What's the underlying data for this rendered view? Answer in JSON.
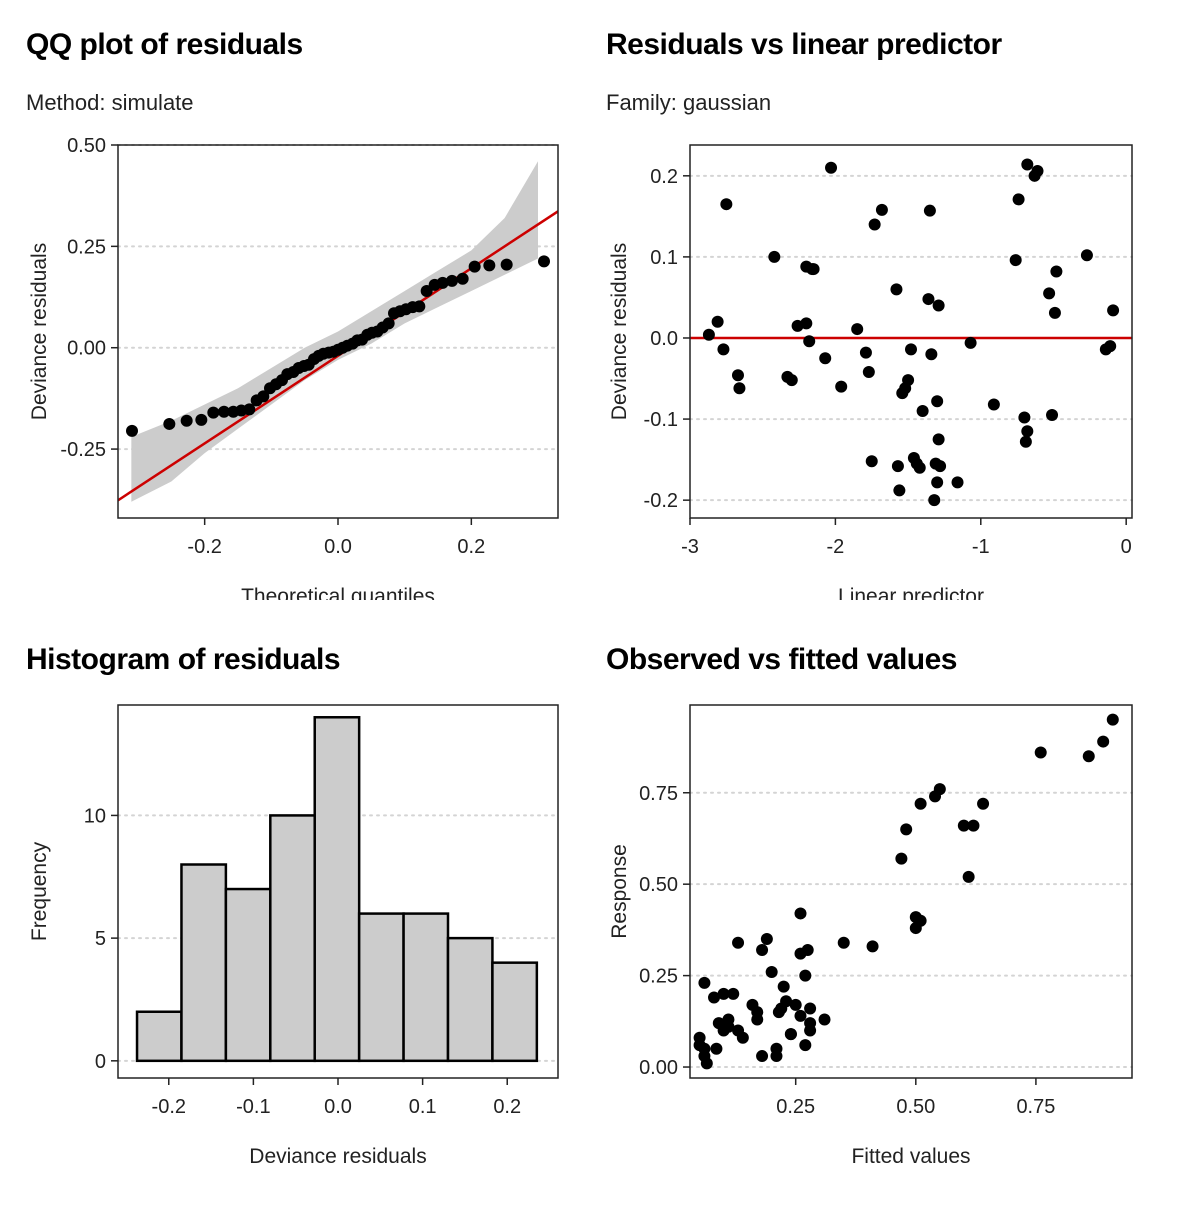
{
  "chart_data": [
    {
      "id": "qq",
      "type": "scatter",
      "title": "QQ plot of residuals",
      "subtitle": "Method: simulate",
      "xlabel": "Theoretical quantiles",
      "ylabel": "Deviance residuals",
      "xlim": [
        -0.33,
        0.33
      ],
      "ylim": [
        -0.42,
        0.5
      ],
      "xticks": [
        -0.2,
        0.0,
        0.2
      ],
      "xtick_labels": [
        "-0.2",
        "0.0",
        "0.2"
      ],
      "yticks": [
        -0.25,
        0.0,
        0.25,
        0.5
      ],
      "ytick_labels": [
        "-0.25",
        "0.00",
        "0.25",
        "0.50"
      ],
      "grid": "horizontal-dotted",
      "colors": {
        "points": "#000000",
        "line": "#cc0000",
        "band": "#cccccc"
      },
      "reference_line": {
        "intercept": -0.02,
        "slope": 1.08
      },
      "band": {
        "x": [
          -0.31,
          -0.25,
          -0.2,
          -0.15,
          -0.1,
          -0.05,
          0.0,
          0.05,
          0.1,
          0.15,
          0.2,
          0.25,
          0.3
        ],
        "lower": [
          -0.38,
          -0.33,
          -0.26,
          -0.2,
          -0.14,
          -0.08,
          -0.03,
          0.01,
          0.06,
          0.1,
          0.14,
          0.18,
          0.22
        ],
        "upper": [
          -0.22,
          -0.18,
          -0.14,
          -0.1,
          -0.05,
          0.0,
          0.04,
          0.09,
          0.14,
          0.19,
          0.24,
          0.32,
          0.46
        ]
      },
      "points": {
        "x": [
          -0.309,
          -0.253,
          -0.227,
          -0.205,
          -0.187,
          -0.171,
          -0.157,
          -0.145,
          -0.133,
          -0.122,
          -0.112,
          -0.102,
          -0.093,
          -0.084,
          -0.076,
          -0.067,
          -0.059,
          -0.051,
          -0.044,
          -0.036,
          -0.029,
          -0.022,
          -0.014,
          -0.007,
          0.0,
          0.007,
          0.014,
          0.022,
          0.029,
          0.036,
          0.044,
          0.051,
          0.059,
          0.067,
          0.076,
          0.084,
          0.093,
          0.102,
          0.112,
          0.122,
          0.133,
          0.145,
          0.157,
          0.171,
          0.187,
          0.205,
          0.227,
          0.253,
          0.309
        ],
        "y": [
          -0.205,
          -0.188,
          -0.18,
          -0.178,
          -0.16,
          -0.158,
          -0.158,
          -0.155,
          -0.152,
          -0.13,
          -0.12,
          -0.1,
          -0.09,
          -0.08,
          -0.065,
          -0.06,
          -0.05,
          -0.045,
          -0.042,
          -0.028,
          -0.02,
          -0.015,
          -0.012,
          -0.01,
          -0.005,
          0.0,
          0.005,
          0.01,
          0.018,
          0.02,
          0.032,
          0.037,
          0.04,
          0.05,
          0.06,
          0.085,
          0.09,
          0.095,
          0.1,
          0.102,
          0.14,
          0.155,
          0.16,
          0.165,
          0.17,
          0.2,
          0.203,
          0.205,
          0.213
        ]
      }
    },
    {
      "id": "resid-linpred",
      "type": "scatter",
      "title": "Residuals vs linear predictor",
      "subtitle": "Family: gaussian",
      "xlabel": "Linear predictor",
      "ylabel": "Deviance residuals",
      "xlim": [
        -3.0,
        0.04
      ],
      "ylim": [
        -0.222,
        0.238
      ],
      "xticks": [
        -3,
        -2,
        -1,
        0
      ],
      "xtick_labels": [
        "-3",
        "-2",
        "-1",
        "0"
      ],
      "yticks": [
        -0.2,
        -0.1,
        0.0,
        0.1,
        0.2
      ],
      "ytick_labels": [
        "-0.2",
        "-0.1",
        "0.0",
        "0.1",
        "0.2"
      ],
      "grid": "horizontal-dotted",
      "colors": {
        "points": "#000000",
        "line": "#cc0000"
      },
      "reference_line_y": 0.0,
      "points": {
        "x": [
          -2.75,
          -2.87,
          -2.81,
          -2.77,
          -2.67,
          -2.66,
          -2.42,
          -2.33,
          -2.3,
          -2.26,
          -2.2,
          -2.2,
          -2.18,
          -2.16,
          -2.15,
          -2.07,
          -2.03,
          -1.96,
          -1.85,
          -1.79,
          -1.77,
          -1.75,
          -1.73,
          -1.68,
          -1.58,
          -1.57,
          -1.56,
          -1.54,
          -1.52,
          -1.5,
          -1.48,
          -1.46,
          -1.44,
          -1.42,
          -1.4,
          -1.36,
          -1.35,
          -1.34,
          -1.32,
          -1.31,
          -1.3,
          -1.3,
          -1.29,
          -1.29,
          -1.28,
          -1.16,
          -1.07,
          -0.91,
          -0.76,
          -0.74,
          -0.69,
          -0.7,
          -0.68,
          -0.68,
          -0.63,
          -0.61,
          -0.53,
          -0.51,
          -0.49,
          -0.48,
          -0.27,
          -0.14,
          -0.11,
          -0.09
        ],
        "y": [
          0.165,
          0.004,
          0.02,
          -0.014,
          -0.046,
          -0.062,
          0.1,
          -0.048,
          -0.052,
          0.015,
          0.088,
          0.018,
          -0.004,
          0.085,
          0.085,
          -0.025,
          0.21,
          -0.06,
          0.011,
          -0.018,
          -0.042,
          -0.152,
          0.14,
          0.158,
          0.06,
          -0.158,
          -0.188,
          -0.068,
          -0.062,
          -0.052,
          -0.014,
          -0.148,
          -0.155,
          -0.16,
          -0.09,
          0.048,
          0.157,
          -0.02,
          -0.2,
          -0.155,
          -0.078,
          -0.178,
          0.04,
          -0.125,
          -0.158,
          -0.178,
          -0.006,
          -0.082,
          0.096,
          0.171,
          -0.128,
          -0.098,
          -0.115,
          0.214,
          0.2,
          0.206,
          0.055,
          -0.095,
          0.031,
          0.082,
          0.102,
          -0.014,
          -0.01,
          0.034
        ]
      }
    },
    {
      "id": "hist",
      "type": "bar",
      "title": "Histogram of residuals",
      "xlabel": "Deviance residuals",
      "ylabel": "Frequency",
      "xlim": [
        -0.26,
        0.26
      ],
      "ylim": [
        -0.7,
        14.5
      ],
      "xticks": [
        -0.2,
        -0.1,
        0.0,
        0.1,
        0.2
      ],
      "xtick_labels": [
        "-0.2",
        "-0.1",
        "0.0",
        "0.1",
        "0.2"
      ],
      "yticks": [
        0,
        5,
        10
      ],
      "ytick_labels": [
        "0",
        "5",
        "10"
      ],
      "grid": "horizontal-dotted",
      "colors": {
        "fill": "#cccccc",
        "stroke": "#000000"
      },
      "bin_edges": [
        -0.2375,
        -0.185,
        -0.1325,
        -0.08,
        -0.0275,
        0.025,
        0.0775,
        0.13,
        0.1825,
        0.235
      ],
      "counts": [
        2,
        8,
        7,
        10,
        14,
        6,
        6,
        5,
        4
      ]
    },
    {
      "id": "obs-fitted",
      "type": "scatter",
      "title": "Observed vs fitted values",
      "xlabel": "Fitted values",
      "ylabel": "Response",
      "xlim": [
        0.03,
        0.95
      ],
      "ylim": [
        -0.03,
        0.99
      ],
      "xticks": [
        0.25,
        0.5,
        0.75
      ],
      "xtick_labels": [
        "0.25",
        "0.50",
        "0.75"
      ],
      "yticks": [
        0.0,
        0.25,
        0.5,
        0.75
      ],
      "ytick_labels": [
        "0.00",
        "0.25",
        "0.50",
        "0.75"
      ],
      "grid": "horizontal-dotted",
      "colors": {
        "points": "#000000"
      },
      "points": {
        "x": [
          0.05,
          0.05,
          0.06,
          0.06,
          0.06,
          0.065,
          0.08,
          0.085,
          0.09,
          0.1,
          0.1,
          0.11,
          0.11,
          0.12,
          0.13,
          0.13,
          0.14,
          0.16,
          0.17,
          0.17,
          0.18,
          0.18,
          0.19,
          0.2,
          0.21,
          0.21,
          0.215,
          0.22,
          0.225,
          0.23,
          0.24,
          0.24,
          0.25,
          0.26,
          0.26,
          0.26,
          0.27,
          0.27,
          0.275,
          0.28,
          0.28,
          0.28,
          0.31,
          0.35,
          0.41,
          0.47,
          0.48,
          0.5,
          0.5,
          0.51,
          0.51,
          0.54,
          0.55,
          0.6,
          0.61,
          0.62,
          0.64,
          0.76,
          0.86,
          0.89,
          0.91
        ],
        "y": [
          0.06,
          0.08,
          0.05,
          0.23,
          0.03,
          0.01,
          0.19,
          0.05,
          0.12,
          0.2,
          0.1,
          0.13,
          0.11,
          0.2,
          0.1,
          0.34,
          0.08,
          0.17,
          0.15,
          0.13,
          0.03,
          0.32,
          0.35,
          0.26,
          0.05,
          0.03,
          0.15,
          0.16,
          0.22,
          0.18,
          0.09,
          0.09,
          0.17,
          0.42,
          0.14,
          0.31,
          0.06,
          0.25,
          0.32,
          0.12,
          0.1,
          0.16,
          0.13,
          0.34,
          0.33,
          0.57,
          0.65,
          0.41,
          0.38,
          0.72,
          0.4,
          0.74,
          0.76,
          0.66,
          0.52,
          0.66,
          0.72,
          0.86,
          0.85,
          0.89,
          0.95
        ]
      }
    }
  ]
}
